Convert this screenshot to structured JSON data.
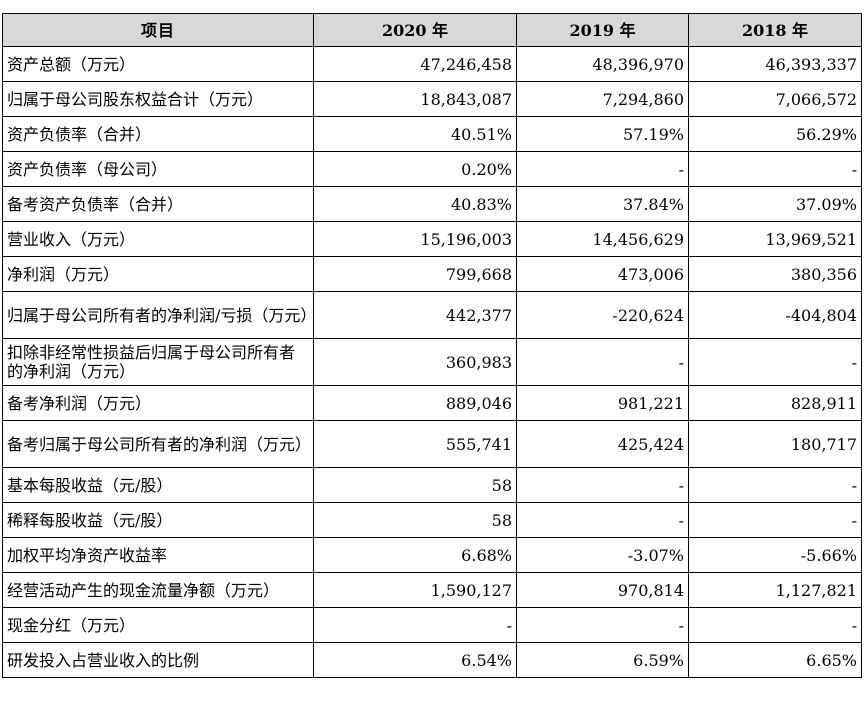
{
  "table": {
    "headers": [
      "项目",
      "2020 年",
      "2019 年",
      "2018 年"
    ],
    "rows": [
      {
        "label": "资产总额（万元）",
        "v2020": "47,246,458",
        "v2019": "48,396,970",
        "v2018": "46,393,337"
      },
      {
        "label": "归属于母公司股东权益合计（万元）",
        "v2020": "18,843,087",
        "v2019": "7,294,860",
        "v2018": "7,066,572"
      },
      {
        "label": "资产负债率（合并）",
        "v2020": "40.51%",
        "v2019": "57.19%",
        "v2018": "56.29%"
      },
      {
        "label": "资产负债率（母公司）",
        "v2020": "0.20%",
        "v2019": "-",
        "v2018": "-"
      },
      {
        "label": "备考资产负债率（合并）",
        "v2020": "40.83%",
        "v2019": "37.84%",
        "v2018": "37.09%"
      },
      {
        "label": "营业收入（万元）",
        "v2020": "15,196,003",
        "v2019": "14,456,629",
        "v2018": "13,969,521"
      },
      {
        "label": "净利润（万元）",
        "v2020": "799,668",
        "v2019": "473,006",
        "v2018": "380,356"
      },
      {
        "label": "归属于母公司所有者的净利润/亏损（万元）",
        "v2020": "442,377",
        "v2019": "-220,624",
        "v2018": "-404,804"
      },
      {
        "label": "扣除非经常性损益后归属于母公司所有者的净利润（万元）",
        "v2020": "360,983",
        "v2019": "-",
        "v2018": "-"
      },
      {
        "label": "备考净利润（万元）",
        "v2020": "889,046",
        "v2019": "981,221",
        "v2018": "828,911"
      },
      {
        "label": "备考归属于母公司所有者的净利润（万元）",
        "v2020": "555,741",
        "v2019": "425,424",
        "v2018": "180,717"
      },
      {
        "label": "基本每股收益（元/股）",
        "v2020": "58",
        "v2019": "-",
        "v2018": "-"
      },
      {
        "label": "稀释每股收益（元/股）",
        "v2020": "58",
        "v2019": "-",
        "v2018": "-"
      },
      {
        "label": "加权平均净资产收益率",
        "v2020": "6.68%",
        "v2019": "-3.07%",
        "v2018": "-5.66%"
      },
      {
        "label": "经营活动产生的现金流量净额（万元）",
        "v2020": "1,590,127",
        "v2019": "970,814",
        "v2018": "1,127,821"
      },
      {
        "label": "现金分红（万元）",
        "v2020": "-",
        "v2019": "-",
        "v2018": "-"
      },
      {
        "label": "研发投入占营业收入的比例",
        "v2020": "6.54%",
        "v2019": "6.59%",
        "v2018": "6.65%"
      }
    ]
  }
}
